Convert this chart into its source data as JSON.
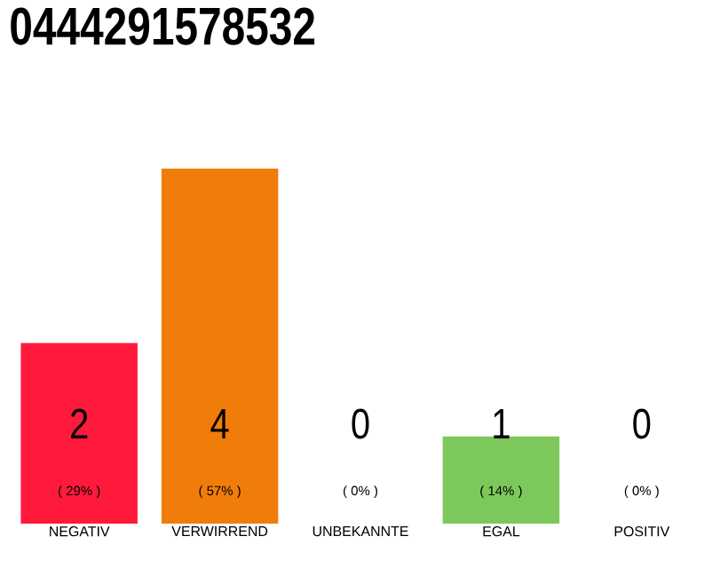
{
  "chart_data": {
    "type": "bar",
    "title": "0444291578532",
    "categories": [
      "NEGATIV",
      "VERWIRREND",
      "UNBEKANNTE",
      "EGAL",
      "POSITIV"
    ],
    "values": [
      29,
      57,
      0,
      14,
      0
    ],
    "colors": [
      "#ff1a3c",
      "#f07d0a",
      null,
      "#7dc85a",
      null
    ],
    "value_labels": [
      "( 29% )",
      "( 57% )",
      "( 0% )",
      "( 14% )",
      "( 0% )"
    ],
    "annotations": [
      "2",
      "4",
      "0",
      "1",
      "0"
    ]
  }
}
